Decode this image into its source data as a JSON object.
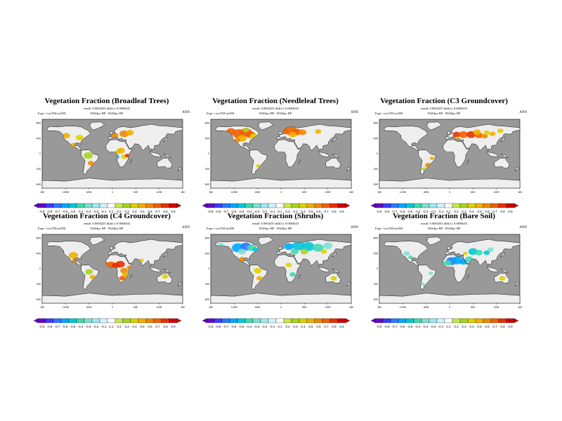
{
  "panels": [
    {
      "title": "Vegetation Fraction (Broadleaf Trees)",
      "stats": "rmsdi: 0.0694255  diff(±): 0.0694633",
      "expt": "Expt = trwTM-noXM",
      "period": "0526kyr BP - 0526kyr BP",
      "season": "ANN",
      "colorbar": [
        "-0.9",
        "-0.8",
        "-0.7",
        "-0.6",
        "-0.5",
        "-0.4",
        "-0.3",
        "-0.2",
        "-0.1",
        "0.1",
        "0.2",
        "0.3",
        "0.4",
        "0.5",
        "0.6",
        "0.7",
        "0.8",
        "0.9"
      ]
    },
    {
      "title": "Vegetation Fraction (Needleleaf Trees)",
      "stats": "rmsdi: 0.0694255  diff(±): 0.0694633",
      "expt": "Expt = trwTM-noXM",
      "period": "0526kyr BP - 0526kyr BP",
      "season": "ANN",
      "colorbar": [
        "-0.9",
        "-0.8",
        "-0.7",
        "-0.6",
        "-0.5",
        "-0.4",
        "-0.3",
        "-0.2",
        "-0.1",
        "0.1",
        "0.2",
        "0.3",
        "0.4",
        "0.5",
        "0.6",
        "0.7",
        "0.8",
        "0.9"
      ]
    },
    {
      "title": "Vegetation Fraction (C3 Groundcover)",
      "stats": "rmsdi: 0.0694255  diff(±): 0.0694633",
      "expt": "Expt = trwTM-noXM",
      "period": "0526kyr BP - 0526kyr BP",
      "season": "ANN",
      "colorbar": [
        "-0.9",
        "-0.8",
        "-0.7",
        "-0.6",
        "-0.5",
        "-0.4",
        "-0.3",
        "-0.2",
        "-0.1",
        "0.1",
        "0.2",
        "0.3",
        "0.4",
        "0.5",
        "0.6",
        "0.7",
        "0.8",
        "0.9"
      ]
    },
    {
      "title": "Vegetation Fraction (C4 Groundcover)",
      "stats": "rmsdi: 0.0694255  diff(±): 0.0694633",
      "expt": "Expt = trwTM-noXM",
      "period": "0526kyr BP - 0526kyr BP",
      "season": "ANN",
      "colorbar": [
        "-0.9",
        "-0.8",
        "-0.7",
        "-0.6",
        "-0.5",
        "-0.4",
        "-0.3",
        "-0.2",
        "-0.1",
        "0.1",
        "0.2",
        "0.3",
        "0.4",
        "0.5",
        "0.6",
        "0.7",
        "0.8",
        "0.9"
      ]
    },
    {
      "title": "Vegetation Fraction (Shrubs)",
      "stats": "rmsdi: 0.0694255  diff(±): 0.0694633",
      "expt": "Expt = trwTM-noXM",
      "period": "0526kyr BP - 0526kyr BP",
      "season": "ANN",
      "colorbar": [
        "-0.9",
        "-0.8",
        "-0.7",
        "-0.6",
        "-0.5",
        "-0.4",
        "-0.3",
        "-0.2",
        "-0.1",
        "0.1",
        "0.2",
        "0.3",
        "0.4",
        "0.5",
        "0.6",
        "0.7",
        "0.8",
        "0.9"
      ]
    },
    {
      "title": "Vegetation Fraction (Bare Soil)",
      "stats": "rmsdi: 0.0694255  diff(±): 0.0694633",
      "expt": "Expt = trwTM-noXM",
      "period": "0526kyr BP - 0526kyr BP",
      "season": "ANN",
      "colorbar": [
        "-0.9",
        "-0.8",
        "-0.7",
        "-0.6",
        "-0.5",
        "-0.4",
        "-0.3",
        "-0.2",
        "-0.1",
        "0.1",
        "0.2",
        "0.3",
        "0.4",
        "0.5",
        "0.6",
        "0.7",
        "0.8",
        "0.9"
      ]
    }
  ],
  "map_axes": {
    "lon_labels": [
      "180",
      "120W",
      "60W",
      "0",
      "60E",
      "120E",
      "180"
    ],
    "lat_labels": [
      "80N",
      "40N",
      "0",
      "40S",
      "80S"
    ]
  },
  "colors": {
    "ocean": "#999999",
    "land": "#eeeeee",
    "scale": [
      "#6a00c8",
      "#3c3cff",
      "#2e78ff",
      "#00a8ff",
      "#00c8dc",
      "#40d8b0",
      "#80e0d0",
      "#a0e8f0",
      "#d0f4ff",
      "#ffffff",
      "#c8e84a",
      "#a8d420",
      "#e0d000",
      "#f0b000",
      "#f08800",
      "#f06000",
      "#e83000",
      "#d00000"
    ]
  }
}
